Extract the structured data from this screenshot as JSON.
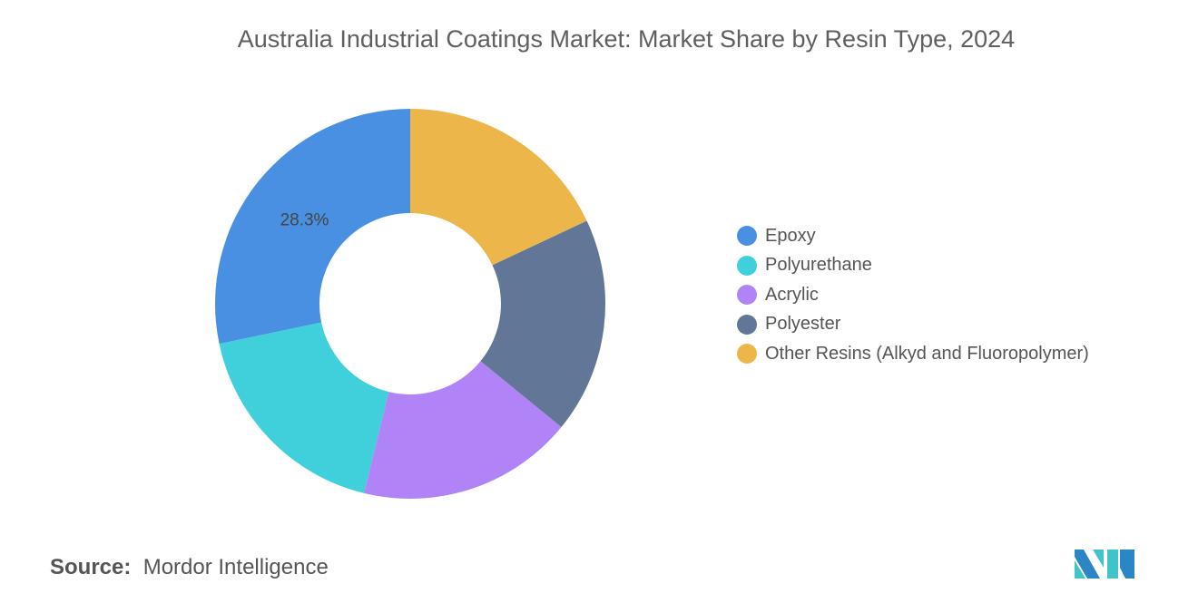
{
  "chart_data": {
    "type": "donut",
    "title": "Australia Industrial Coatings Market: Market Share by Resin Type, 2024",
    "categories": [
      "Epoxy",
      "Polyurethane",
      "Acrylic",
      "Polyester",
      "Other Resins (Alkyd and Fluoropolymer)"
    ],
    "values": [
      28.3,
      17.9,
      17.9,
      17.9,
      18.0
    ],
    "colors": [
      "#4a90e2",
      "#40d0db",
      "#b084f7",
      "#627798",
      "#ecb64a"
    ],
    "data_labels": {
      "Epoxy": "28.3%"
    },
    "legend_position": "right"
  },
  "source": {
    "label": "Source:",
    "text": "Mordor Intelligence"
  }
}
